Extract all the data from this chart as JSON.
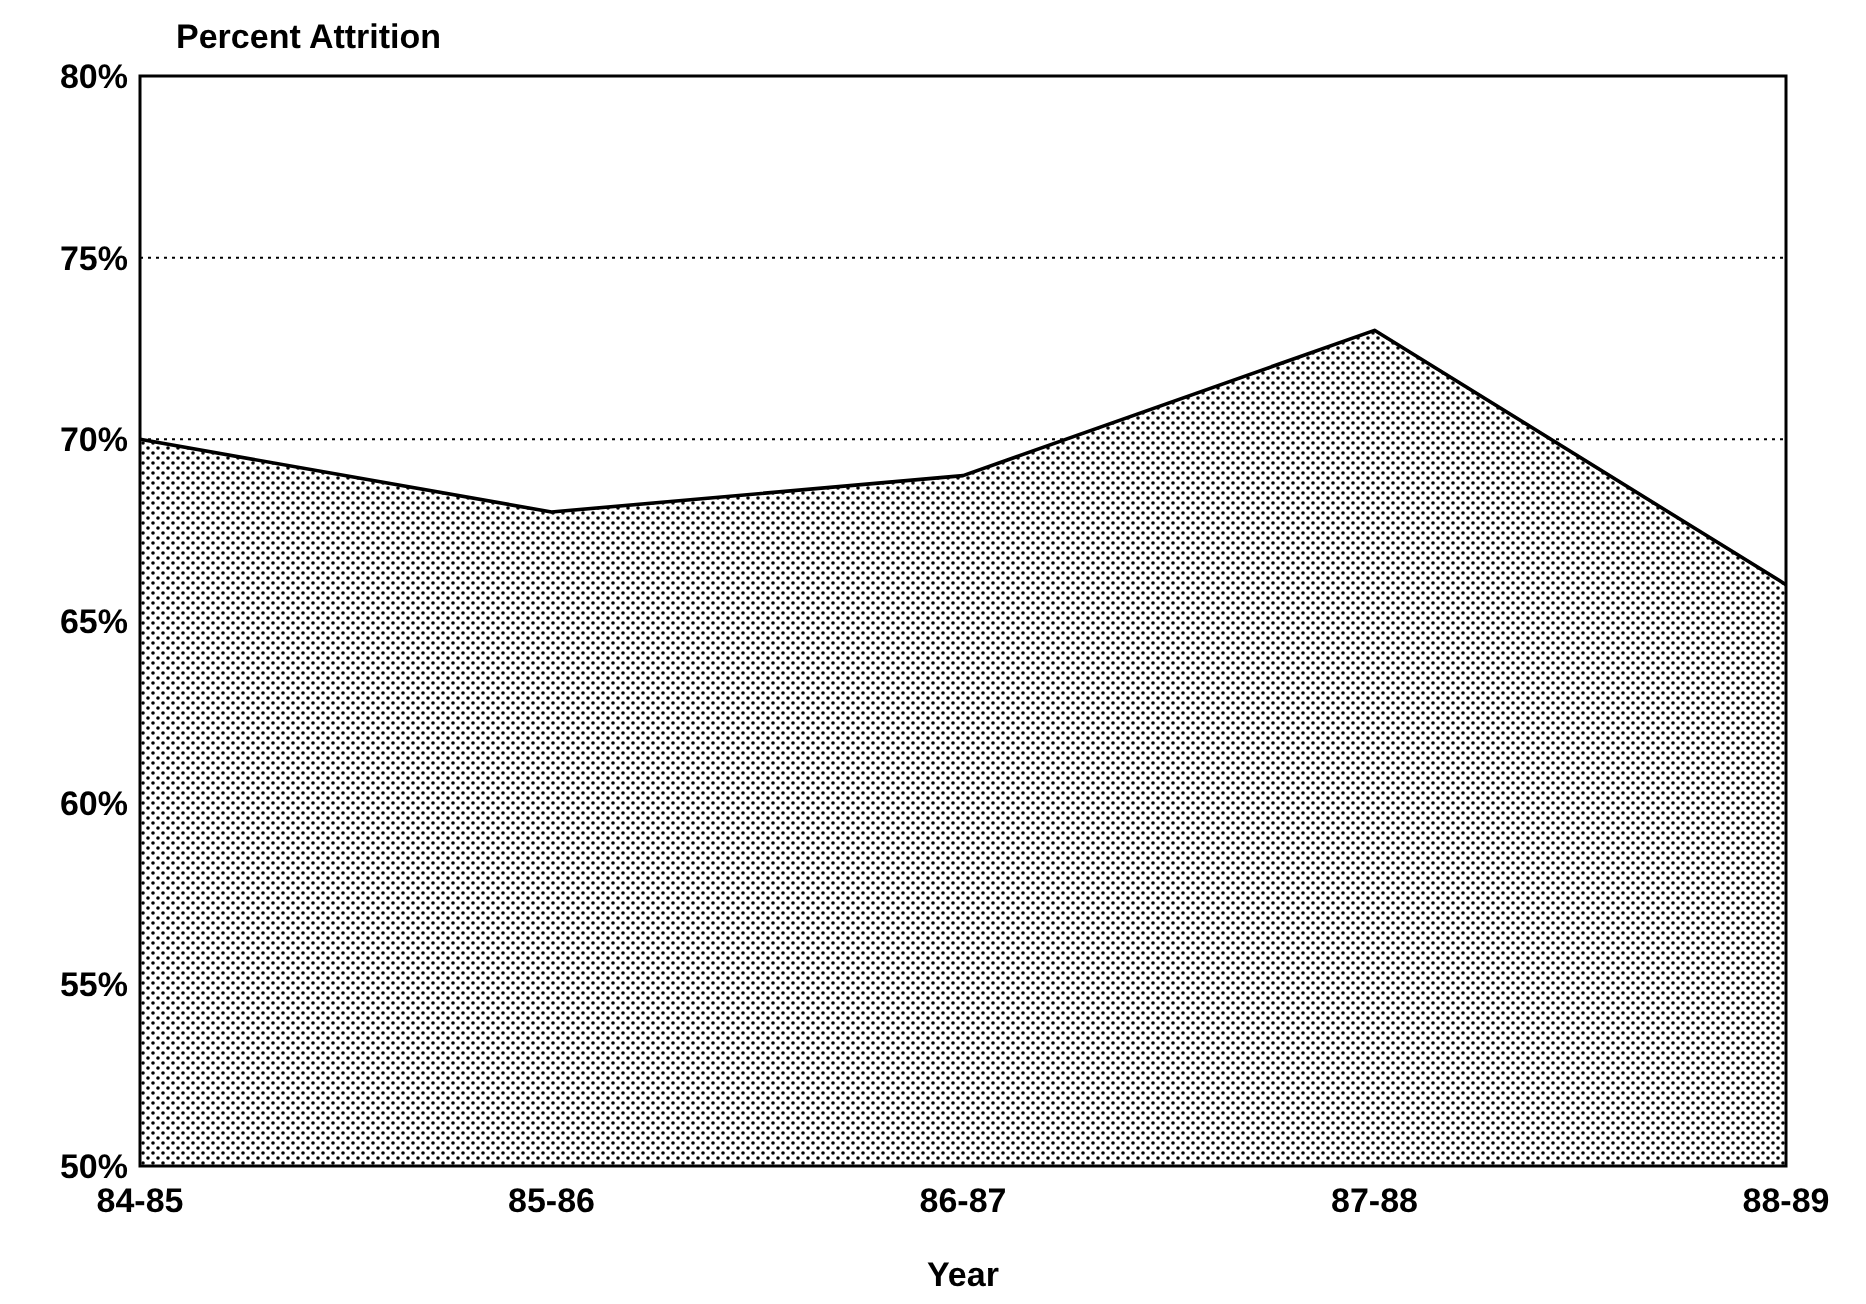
{
  "chart_data": {
    "type": "area",
    "ylabel": "Percent Attrition",
    "xlabel": "Year",
    "categories": [
      "84-85",
      "85-86",
      "86-87",
      "87-88",
      "88-89"
    ],
    "series": [
      {
        "color": "#000000",
        "values": [
          70,
          68,
          69,
          73,
          66
        ]
      }
    ],
    "ylim": [
      50,
      80
    ],
    "yticks": [
      {
        "value": 50,
        "label": "50%"
      },
      {
        "value": 55,
        "label": "55%"
      },
      {
        "value": 60,
        "label": "60%"
      },
      {
        "value": 65,
        "label": "65%"
      },
      {
        "value": 70,
        "label": "70%"
      },
      {
        "value": 75,
        "label": "75%"
      },
      {
        "value": 80,
        "label": "80%"
      }
    ],
    "grid": "y",
    "line_style": "solid"
  }
}
